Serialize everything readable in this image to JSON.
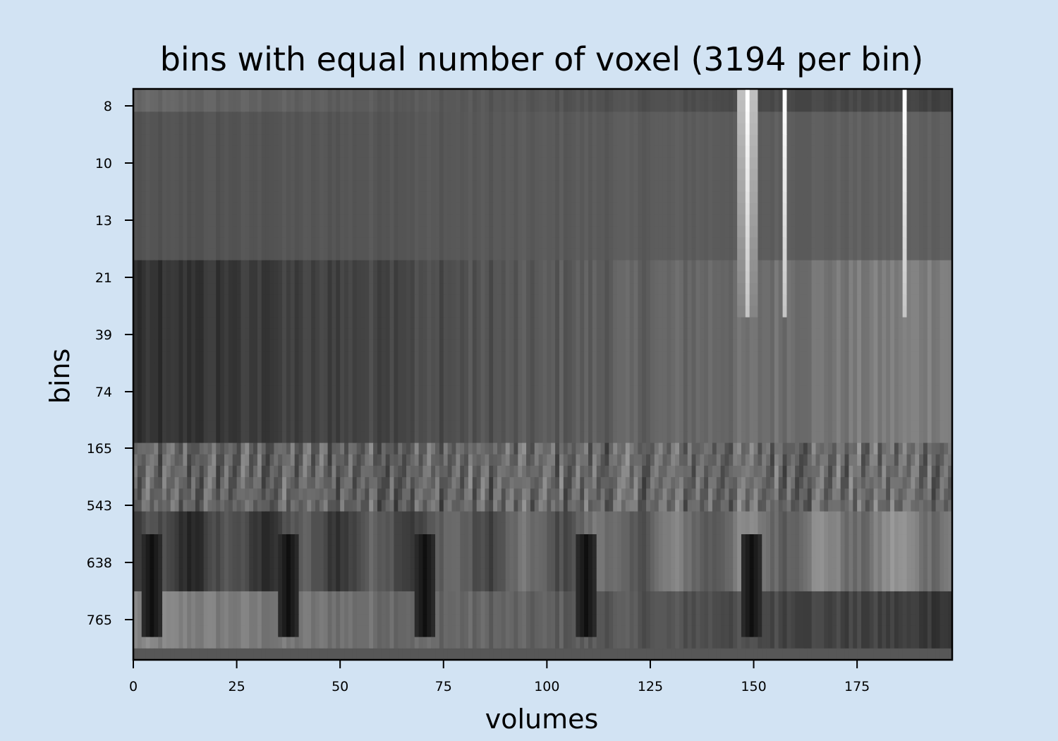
{
  "chart_data": {
    "type": "heatmap",
    "title": "bins with equal number of voxel (3194 per bin)",
    "xlabel": "volumes",
    "ylabel": "bins",
    "colormap": "gray",
    "grid": false,
    "legend": "none",
    "x_range": [
      0,
      198
    ],
    "x_ticks": [
      "0",
      "25",
      "50",
      "75",
      "100",
      "125",
      "150",
      "175"
    ],
    "y_ticks": [
      "8",
      "10",
      "13",
      "21",
      "39",
      "74",
      "165",
      "543",
      "638",
      "765"
    ],
    "n_rows": 50,
    "bright_streaks_at_volume": [
      148,
      157,
      186
    ],
    "dark_spots_at_volume": [
      4,
      37,
      70,
      109,
      149
    ],
    "background_color": "#d2e3f3",
    "frame_color": "#000000"
  }
}
